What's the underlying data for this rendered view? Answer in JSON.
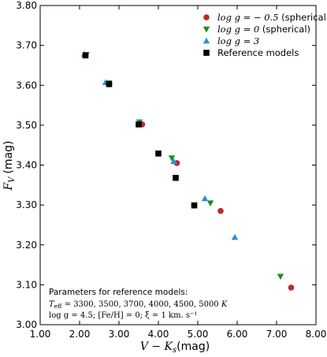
{
  "chart_data": {
    "type": "scatter",
    "xlabel": "V − K",
    "xlabel_sub": "s",
    "xlabel_unit": "(mag)",
    "ylabel": "F",
    "ylabel_sub": "V",
    "ylabel_unit": "(mag)",
    "xlim": [
      1.0,
      8.0
    ],
    "ylim": [
      3.0,
      3.8
    ],
    "xticks": [
      "1.00",
      "2.00",
      "3.00",
      "4.00",
      "5.00",
      "6.00",
      "7.00",
      "8.00"
    ],
    "yticks": [
      "3.00",
      "3.10",
      "3.20",
      "3.30",
      "3.40",
      "3.50",
      "3.60",
      "3.70",
      "3.80"
    ],
    "grid": false,
    "legend_position": "top-right",
    "series": [
      {
        "name": "log g = −0.5 (spherical)",
        "legend_math": "log g = − 0.5",
        "legend_rest": " (spherical)",
        "marker": "circle",
        "color": "#c0282c",
        "points": [
          [
            2.15,
            3.675
          ],
          [
            2.73,
            3.604
          ],
          [
            3.59,
            3.502
          ],
          [
            4.47,
            3.405
          ],
          [
            5.58,
            3.285
          ],
          [
            7.37,
            3.093
          ]
        ]
      },
      {
        "name": "log g = 0 (spherical)",
        "legend_math": "log g = 0",
        "legend_rest": " (spherical)",
        "marker": "triangle-down",
        "color": "#1b8c1b",
        "points": [
          [
            2.17,
            3.677
          ],
          [
            2.74,
            3.606
          ],
          [
            3.52,
            3.508
          ],
          [
            4.34,
            3.418
          ],
          [
            5.32,
            3.305
          ],
          [
            7.1,
            3.121
          ]
        ]
      },
      {
        "name": "log g = 3",
        "legend_math": "log g = 3",
        "legend_rest": "",
        "marker": "triangle-up",
        "color": "#2e8fdb",
        "points": [
          [
            2.12,
            3.678
          ],
          [
            2.66,
            3.607
          ],
          [
            3.5,
            3.506
          ],
          [
            4.39,
            3.409
          ],
          [
            5.18,
            3.316
          ],
          [
            5.94,
            3.219
          ]
        ]
      },
      {
        "name": "Reference models",
        "legend_math": "",
        "legend_rest": "Reference models",
        "marker": "square",
        "color": "#000000",
        "points": [
          [
            2.15,
            3.675
          ],
          [
            2.75,
            3.603
          ],
          [
            3.5,
            3.502
          ],
          [
            4.0,
            3.429
          ],
          [
            4.44,
            3.368
          ],
          [
            4.91,
            3.299
          ]
        ]
      }
    ],
    "annotation": {
      "line1": "Parameters for reference models:",
      "line2_teff": "T",
      "line2_teff_sub": "eff",
      "line2_values": " = 3300, 3500, 3700, 4000, 4500, 5000 ",
      "line2_unit": "K",
      "line3": "log g = 4.5;  [Fe/H] = 0;  ξ = 1 km. s⁻¹"
    }
  }
}
